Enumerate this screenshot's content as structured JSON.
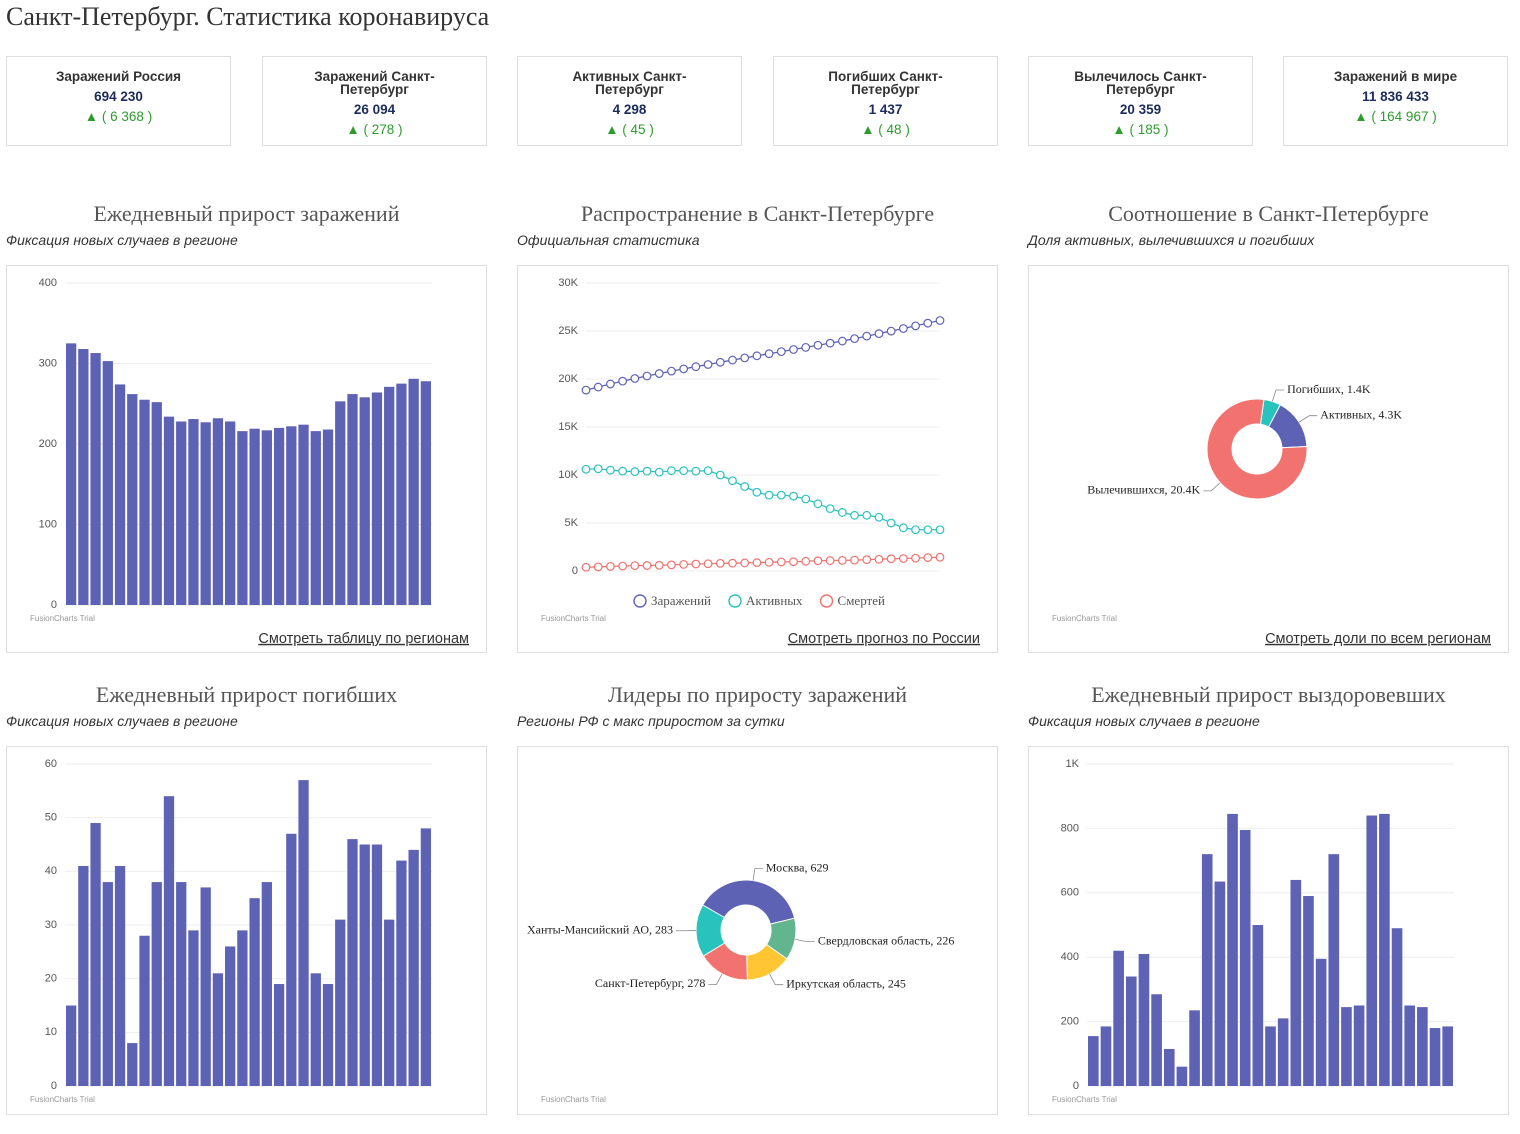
{
  "title": "Санкт-Петербург. Статистика коронавируса",
  "cards": [
    {
      "title": "Заражений Россия",
      "value": "694 230",
      "delta": "▲ ( 6 368 )"
    },
    {
      "title": "Заражений Санкт-Петербург",
      "value": "26 094",
      "delta": "▲ ( 278 )"
    },
    {
      "title": "Активных Санкт-Петербург",
      "value": "4 298",
      "delta": "▲ ( 45 )"
    },
    {
      "title": "Погибших Санкт-Петербург",
      "value": "1 437",
      "delta": "▲ ( 48 )"
    },
    {
      "title": "Вылечилось Санкт-Петербург",
      "value": "20 359",
      "delta": "▲ ( 185 )"
    },
    {
      "title": "Заражений в мире",
      "value": "11 836 433",
      "delta": "▲ ( 164 967 )"
    }
  ],
  "chart_data": [
    {
      "type": "bar",
      "title": "Ежедневный прирост заражений",
      "subtitle": "Фиксация новых случаев в регионе",
      "values": [
        325,
        318,
        313,
        303,
        274,
        262,
        255,
        252,
        234,
        228,
        231,
        227,
        232,
        228,
        216,
        219,
        217,
        220,
        222,
        224,
        216,
        218,
        253,
        262,
        258,
        264,
        271,
        275,
        281,
        278
      ],
      "color": "#5d62b5",
      "ylim": [
        0,
        400
      ],
      "yticks": [
        0,
        100,
        200,
        300,
        400
      ],
      "grid": true,
      "watermark": "FusionCharts Trial",
      "link": "Смотреть таблицу по регионам"
    },
    {
      "type": "line",
      "title": "Распространение в Санкт-Петербурге",
      "subtitle": "Официальная статистика",
      "series": [
        {
          "name": "Заражений",
          "color": "#5d62b5",
          "values": [
            18843,
            19161,
            19474,
            19777,
            20051,
            20313,
            20568,
            20820,
            21054,
            21282,
            21513,
            21740,
            21972,
            22200,
            22416,
            22635,
            22852,
            23072,
            23294,
            23518,
            23734,
            23952,
            24205,
            24467,
            24725,
            24989,
            25260,
            25535,
            25816,
            26094
          ]
        },
        {
          "name": "Активных",
          "color": "#29c3be",
          "values": [
            10600,
            10650,
            10500,
            10400,
            10350,
            10400,
            10300,
            10450,
            10450,
            10400,
            10450,
            10000,
            9400,
            8800,
            8200,
            7900,
            7900,
            7800,
            7500,
            7000,
            6500,
            6100,
            5800,
            5800,
            5600,
            5000,
            4500,
            4300,
            4300,
            4298
          ]
        },
        {
          "name": "Смертей",
          "color": "#f2726f",
          "values": [
            392,
            433,
            482,
            520,
            561,
            569,
            597,
            635,
            689,
            727,
            756,
            793,
            814,
            840,
            869,
            904,
            942,
            961,
            1008,
            1065,
            1086,
            1105,
            1136,
            1182,
            1227,
            1272,
            1303,
            1345,
            1389,
            1437
          ]
        }
      ],
      "ylim": [
        0,
        30000
      ],
      "yticks": [
        0,
        {
          "value": 5000,
          "label": "5K"
        },
        {
          "value": 10000,
          "label": "10K"
        },
        {
          "value": 15000,
          "label": "15K"
        },
        {
          "value": 20000,
          "label": "20K"
        },
        {
          "value": 25000,
          "label": "25K"
        },
        {
          "value": 30000,
          "label": "30K"
        }
      ],
      "grid": true,
      "watermark": "FusionCharts Trial",
      "link": "Смотреть прогноз по России"
    },
    {
      "type": "pie",
      "title": "Соотношение в Санкт-Петербурге",
      "subtitle": "Доля активных, вылечившихся и погибших",
      "values": [
        1437,
        4298,
        20359
      ],
      "value_labels": [
        "Погибших, 1.4K",
        "Активных, 4.3K",
        "Вылечившихся, 20.4K"
      ],
      "colors": [
        "#29c3be",
        "#5d62b5",
        "#f2726f"
      ],
      "watermark": "FusionCharts Trial",
      "link": "Смотреть доли по всем регионам"
    },
    {
      "type": "bar",
      "title": "Ежедневный прирост погибших",
      "subtitle": "Фиксация новых случаев в регионе",
      "values": [
        15,
        41,
        49,
        38,
        41,
        8,
        28,
        38,
        54,
        38,
        29,
        37,
        21,
        26,
        29,
        35,
        38,
        19,
        47,
        57,
        21,
        19,
        31,
        46,
        45,
        45,
        31,
        42,
        44,
        48
      ],
      "color": "#5d62b5",
      "ylim": [
        0,
        60
      ],
      "yticks": [
        0,
        10,
        20,
        30,
        40,
        50,
        60
      ],
      "grid": true,
      "watermark": "FusionCharts Trial"
    },
    {
      "type": "pie",
      "title": "Лидеры по приросту заражений",
      "subtitle": "Регионы РФ с макс приростом за сутки",
      "values": [
        629,
        226,
        245,
        278,
        283
      ],
      "value_labels": [
        "Москва, 629",
        "Свердловская область, 226",
        "Иркутская область, 245",
        "Санкт-Петербург, 278",
        "Ханты-Мансийский АО, 283"
      ],
      "colors": [
        "#5d62b5",
        "#62b58f",
        "#ffc533",
        "#f2726f",
        "#29c3be"
      ],
      "watermark": "FusionCharts Trial"
    },
    {
      "type": "bar",
      "title": "Ежедневный прирост выздоровевших",
      "subtitle": "Фиксация новых случаев в регионе",
      "values": [
        155,
        185,
        420,
        340,
        410,
        285,
        115,
        60,
        235,
        720,
        635,
        845,
        795,
        500,
        185,
        210,
        640,
        590,
        395,
        720,
        245,
        250,
        840,
        845,
        490,
        250,
        245,
        180,
        185
      ],
      "color": "#5d62b5",
      "ylim": [
        0,
        1000
      ],
      "yticks": [
        0,
        200,
        400,
        600,
        800,
        {
          "value": 1000,
          "label": "1K"
        }
      ],
      "grid": true,
      "watermark": "FusionCharts Trial"
    }
  ]
}
